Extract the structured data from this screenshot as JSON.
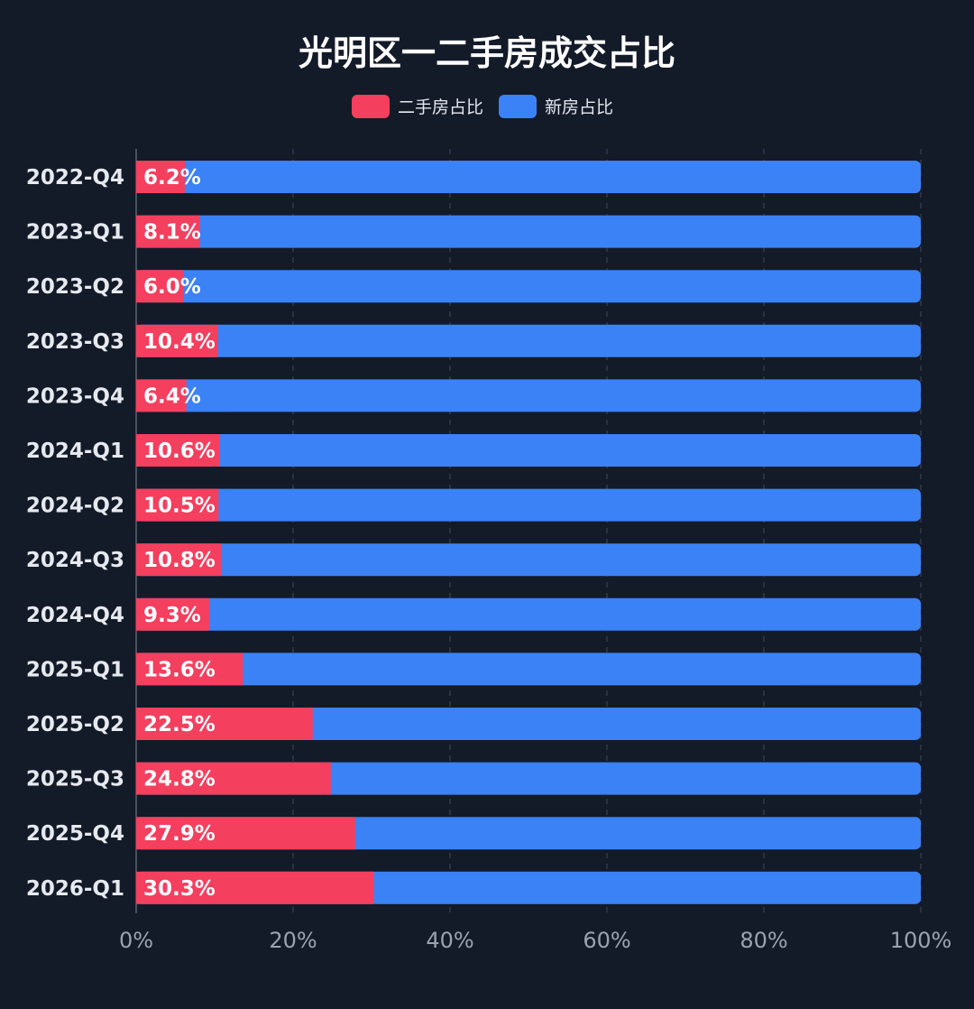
{
  "chart_data": {
    "type": "bar",
    "orientation": "horizontal",
    "stacked": true,
    "title": "光明区一二手房成交占比",
    "legend_position": "top-center",
    "categories": [
      "2022-Q4",
      "2023-Q1",
      "2023-Q2",
      "2023-Q3",
      "2023-Q4",
      "2024-Q1",
      "2024-Q2",
      "2024-Q3",
      "2024-Q4",
      "2025-Q1",
      "2025-Q2",
      "2025-Q3",
      "2025-Q4",
      "2026-Q1"
    ],
    "series": [
      {
        "name": "二手房占比",
        "color": "#f43f5e",
        "values": [
          6.2,
          8.1,
          6.0,
          10.4,
          6.4,
          10.6,
          10.5,
          10.8,
          9.3,
          13.6,
          22.5,
          24.8,
          27.9,
          30.3
        ]
      },
      {
        "name": "新房占比",
        "color": "#3b82f6",
        "values": [
          93.8,
          91.9,
          94.0,
          89.6,
          93.6,
          89.4,
          89.5,
          89.2,
          90.7,
          86.4,
          77.5,
          75.2,
          72.1,
          69.7
        ]
      }
    ],
    "data_labels": [
      "6.2%",
      "8.1%",
      "6.0%",
      "10.4%",
      "6.4%",
      "10.6%",
      "10.5%",
      "10.8%",
      "9.3%",
      "13.6%",
      "22.5%",
      "24.8%",
      "27.9%",
      "30.3%"
    ],
    "x_ticks": [
      "0%",
      "20%",
      "40%",
      "60%",
      "80%",
      "100%"
    ],
    "xlim": [
      0,
      100
    ],
    "grid": "vertical-dashed"
  }
}
